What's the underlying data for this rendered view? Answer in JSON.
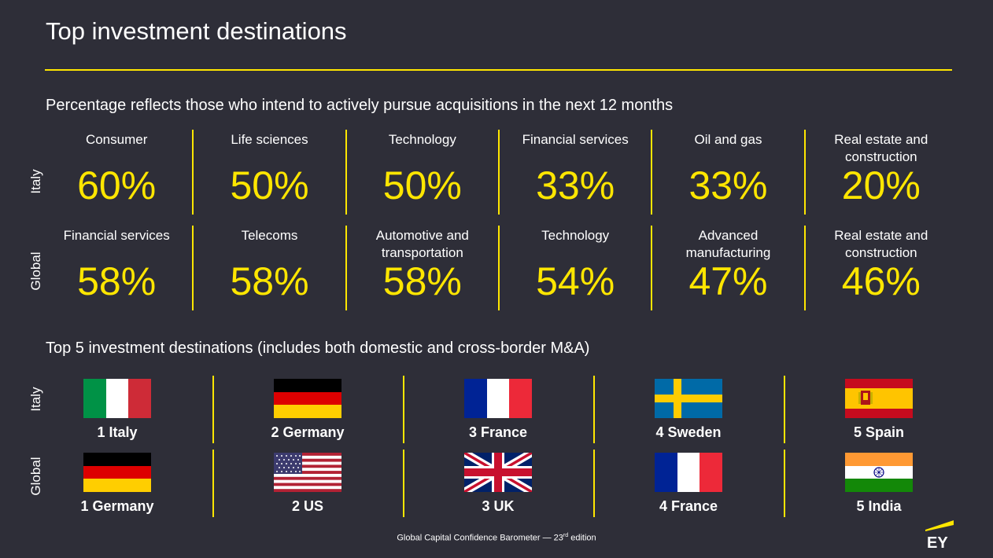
{
  "title": "Top investment destinations",
  "sectors_subtitle": "Percentage reflects those who intend to actively pursue acquisitions in the next 12 months",
  "italy_label": "Italy",
  "global_label": "Global",
  "italy_sectors": [
    {
      "name": "Consumer",
      "pct": "60%"
    },
    {
      "name": "Life sciences",
      "pct": "50%"
    },
    {
      "name": "Technology",
      "pct": "50%"
    },
    {
      "name": "Financial services",
      "pct": "33%"
    },
    {
      "name": "Oil and gas",
      "pct": "33%"
    },
    {
      "name": "Real estate and construction",
      "pct": "20%"
    }
  ],
  "global_sectors": [
    {
      "name": "Financial services",
      "pct": "58%"
    },
    {
      "name": "Telecoms",
      "pct": "58%"
    },
    {
      "name": "Automotive and transportation",
      "pct": "58%"
    },
    {
      "name": "Technology",
      "pct": "54%"
    },
    {
      "name": "Advanced manufacturing",
      "pct": "47%"
    },
    {
      "name": "Real estate and construction",
      "pct": "46%"
    }
  ],
  "destinations_subtitle": "Top 5 investment destinations (includes both domestic and cross-border M&A)",
  "italy_destinations": [
    {
      "label": "1 Italy",
      "flag": "italy-flag-icon"
    },
    {
      "label": "2 Germany",
      "flag": "germany-flag-icon"
    },
    {
      "label": "3 France",
      "flag": "france-flag-icon"
    },
    {
      "label": "4 Sweden",
      "flag": "sweden-flag-icon"
    },
    {
      "label": "5 Spain",
      "flag": "spain-flag-icon"
    }
  ],
  "global_destinations": [
    {
      "label": "1 Germany",
      "flag": "germany-flag-icon"
    },
    {
      "label": "2 US",
      "flag": "us-flag-icon"
    },
    {
      "label": "3 UK",
      "flag": "uk-flag-icon"
    },
    {
      "label": "4 France",
      "flag": "france-flag-icon"
    },
    {
      "label": "5 India",
      "flag": "india-flag-icon"
    }
  ],
  "footer": {
    "text": "Global Capital Confidence Barometer — 23",
    "sup": "rd",
    "suffix": " edition"
  },
  "logo": {
    "text": "EY",
    "icon": "ey-logo-icon"
  },
  "colors": {
    "background": "#2e2e38",
    "accent": "#ffe600",
    "text": "#ffffff"
  }
}
